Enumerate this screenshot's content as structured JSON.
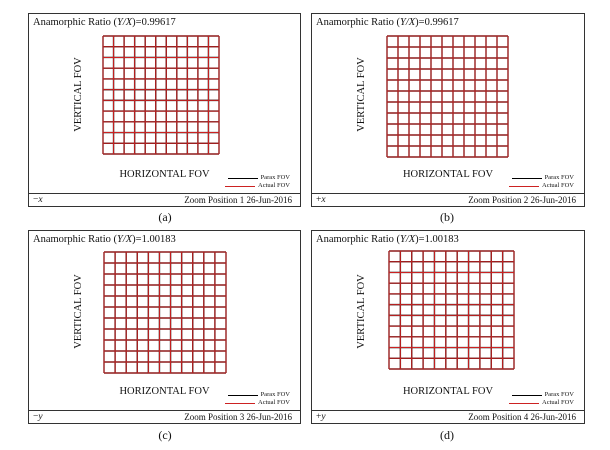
{
  "colors": {
    "actual": "#cc2222",
    "paraxial": "#111111",
    "frame": "#333333"
  },
  "grid": {
    "divisions": 11
  },
  "panels": [
    {
      "title_prefix": "Anamorphic Ratio (",
      "title_var": "Y/X",
      "title_suffix": ")=0.99617",
      "hlabel": "HORIZONTAL FOV",
      "vlabel": "VERTICAL FOV",
      "legend_paraxial": "Parax FOV",
      "legend_actual": "Actual FOV",
      "axis_sign": "−",
      "axis_var": "x",
      "zoom": "Zoom Position  1  26-Jun-2016",
      "caption": "(a)"
    },
    {
      "title_prefix": "Anamorphic Ratio (",
      "title_var": "Y/X",
      "title_suffix": ")=0.99617",
      "hlabel": "HORIZONTAL FOV",
      "vlabel": "VERTICAL FOV",
      "legend_paraxial": "Parax FOV",
      "legend_actual": "Actual FOV",
      "axis_sign": "+",
      "axis_var": "x",
      "zoom": "Zoom Position  2  26-Jun-2016",
      "caption": "(b)"
    },
    {
      "title_prefix": "Anamorphic Ratio (",
      "title_var": "Y/X",
      "title_suffix": ")=1.00183",
      "hlabel": "HORIZONTAL FOV",
      "vlabel": "VERTICAL FOV",
      "legend_paraxial": "Parax FOV",
      "legend_actual": "Actual FOV",
      "axis_sign": "−",
      "axis_var": "y",
      "zoom": "Zoom Position  3  26-Jun-2016",
      "caption": "(c)"
    },
    {
      "title_prefix": "Anamorphic Ratio (",
      "title_var": "Y/X",
      "title_suffix": ")=1.00183",
      "hlabel": "HORIZONTAL FOV",
      "vlabel": "VERTICAL FOV",
      "legend_paraxial": "Parax FOV",
      "legend_actual": "Actual FOV",
      "axis_sign": "+",
      "axis_var": "y",
      "zoom": "Zoom Position  4  26-Jun-2016",
      "caption": "(d)"
    }
  ]
}
